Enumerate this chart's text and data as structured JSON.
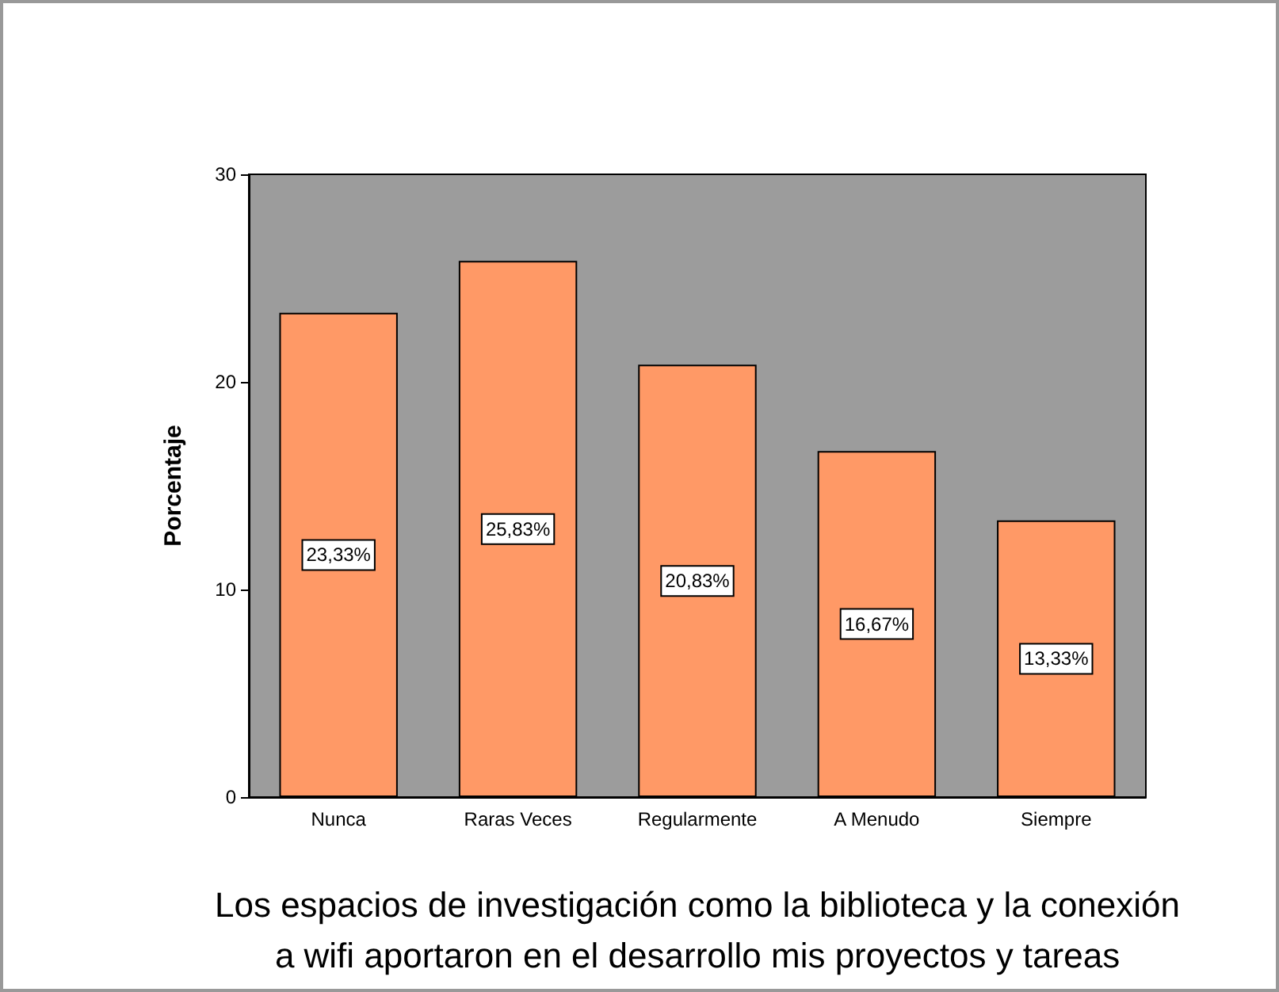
{
  "chart_data": {
    "type": "bar",
    "xlabel": "Los espacios de investigación como la biblioteca y la conexión\na wifi aportaron en el desarrollo mis proyectos y tareas",
    "ylabel": "Porcentaje",
    "categories": [
      "Nunca",
      "Raras Veces",
      "Regularmente",
      "A Menudo",
      "Siempre"
    ],
    "values": [
      23.33,
      25.83,
      20.83,
      16.67,
      13.33
    ],
    "value_labels": [
      "23,33%",
      "25,83%",
      "20,83%",
      "16,67%",
      "13,33%"
    ],
    "color": "#ff9966",
    "ylim": [
      0,
      30
    ],
    "yticks": [
      0,
      10,
      20,
      30
    ],
    "grid": false
  }
}
